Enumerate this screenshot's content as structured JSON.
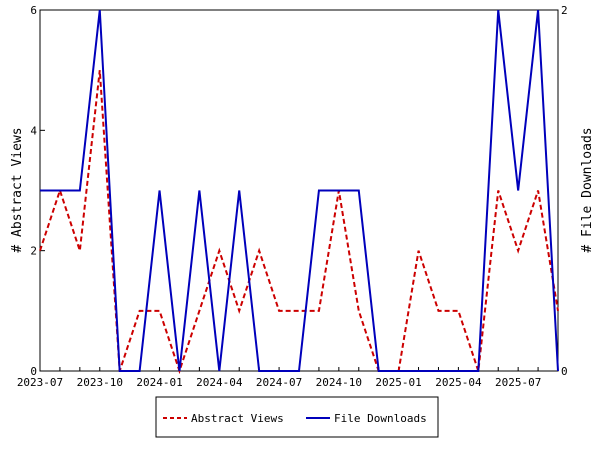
{
  "chart_data": {
    "type": "line",
    "x": [
      "2023-07",
      "2023-08",
      "2023-09",
      "2023-10",
      "2023-11",
      "2023-12",
      "2024-01",
      "2024-02",
      "2024-03",
      "2024-04",
      "2024-05",
      "2024-06",
      "2024-07",
      "2024-08",
      "2024-09",
      "2024-10",
      "2024-11",
      "2024-12",
      "2025-01",
      "2025-02",
      "2025-03",
      "2025-04",
      "2025-05",
      "2025-06",
      "2025-07",
      "2025-08",
      "2025-09"
    ],
    "x_tick_labels": [
      "2023-07",
      "2023-10",
      "2024-01",
      "2024-04",
      "2024-07",
      "2024-10",
      "2025-01",
      "2025-04",
      "2025-07"
    ],
    "series": [
      {
        "name": "Abstract Views",
        "axis": "left",
        "color": "#cc0000",
        "style": "dashed",
        "values": [
          2,
          3,
          2,
          5,
          0,
          1,
          1,
          0,
          1,
          2,
          1,
          2,
          1,
          1,
          1,
          3,
          1,
          0,
          0,
          2,
          1,
          1,
          0,
          3,
          2,
          3,
          1
        ]
      },
      {
        "name": "File Downloads",
        "axis": "right",
        "color": "#0000bb",
        "style": "solid",
        "values": [
          1,
          1,
          1,
          2,
          0,
          0,
          1,
          0,
          1,
          0,
          1,
          0,
          0,
          0,
          1,
          1,
          1,
          0,
          0,
          0,
          0,
          0,
          0,
          2,
          1,
          2,
          0
        ]
      }
    ],
    "ylabel": "# Abstract Views",
    "y2label": "# File Downloads",
    "ylim": [
      0,
      6
    ],
    "y2lim": [
      0,
      2
    ],
    "y_ticks": [
      0,
      2,
      4,
      6
    ],
    "y2_ticks": [
      0,
      2
    ],
    "grid": false,
    "legend": "bottom"
  }
}
